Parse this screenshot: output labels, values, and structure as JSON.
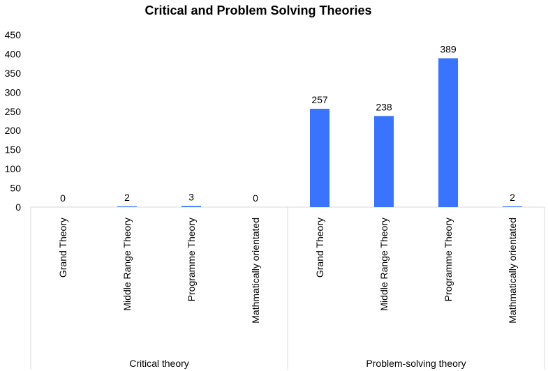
{
  "chart_data": {
    "type": "bar",
    "title": "Critical and Problem Solving Theories",
    "xlabel": "",
    "ylabel": "",
    "ylim": [
      0,
      450
    ],
    "y_ticks": [
      0,
      50,
      100,
      150,
      200,
      250,
      300,
      350,
      400,
      450
    ],
    "grid": false,
    "legend": "none",
    "bar_color": "#3874FF",
    "groups": [
      {
        "label": "Critical theory",
        "categories": [
          "Grand Theory",
          "Middle Range Theory",
          "Programme Theory",
          "Mathmatically orientated"
        ],
        "values": [
          0,
          2,
          3,
          0
        ]
      },
      {
        "label": "Problem-solving theory",
        "categories": [
          "Grand Theory",
          "Middle Range Theory",
          "Programme Theory",
          "Mathmatically orientated"
        ],
        "values": [
          257,
          238,
          389,
          2
        ]
      }
    ]
  }
}
